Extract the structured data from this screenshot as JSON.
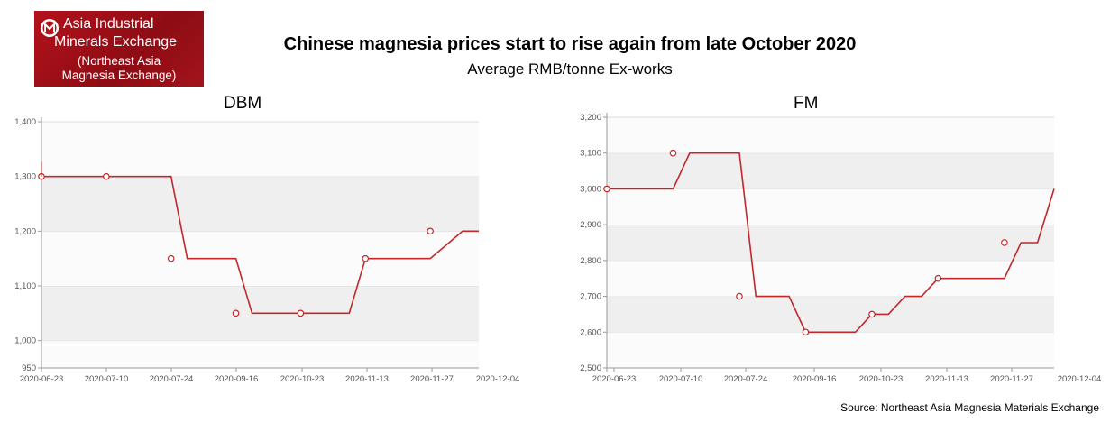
{
  "logo": {
    "line1": "Asia Industrial",
    "line2": "Minerals Exchange",
    "line3": "(Northeast Asia",
    "line4": "Magnesia Exchange)",
    "icon": "m-circle-logo-icon",
    "colors": {
      "background": "#a3141c",
      "text": "#ffffff"
    }
  },
  "header": {
    "title": "Chinese magnesia prices start to rise again from late October 2020",
    "subtitle": "Average RMB/tonne  Ex-works"
  },
  "source": "Source: Northeast Asia Magnesia Materials Exchange",
  "colors": {
    "line": "#c0282a",
    "band": "#efefef",
    "axis": "#999999"
  },
  "chart_data": [
    {
      "type": "line",
      "title": "DBM",
      "ylim": [
        950,
        1400
      ],
      "yticks": [
        950,
        1000,
        1100,
        1200,
        1300,
        1400
      ],
      "ytick_labels": [
        "950",
        "1,000",
        "1,100",
        "1,200",
        "1,300",
        "1,400"
      ],
      "xtick_labels": [
        "2020-06-23",
        "2020-07-10",
        "2020-07-24",
        "2020-09-16",
        "2020-10-23",
        "2020-11-13",
        "2020-11-27",
        "2020-12-04"
      ],
      "grid": "alternating-bands",
      "x": [
        0,
        1,
        2,
        3,
        3.5,
        4,
        4.5,
        5,
        5.5,
        6,
        6.5,
        7,
        7.5,
        8,
        8.5,
        9,
        9.5,
        10,
        10.5,
        11,
        11.5,
        12,
        13
      ],
      "series": [
        {
          "values": [
            1300,
            1300,
            1300,
            1300,
            1300,
            1300,
            1150,
            1150,
            1150,
            1150,
            1050,
            1050,
            1050,
            1050,
            1050,
            1050,
            1050,
            1150,
            1150,
            1150,
            1150,
            1150,
            1200
          ],
          "markers_x": [
            0,
            2,
            4,
            6,
            8,
            10,
            12
          ],
          "markers_y": [
            1300,
            1300,
            1150,
            1050,
            1050,
            1150,
            1200
          ],
          "end": [
            13.5,
            1200
          ]
        }
      ]
    },
    {
      "type": "line",
      "title": "FM",
      "ylim": [
        2500,
        3200
      ],
      "yticks": [
        2500,
        2600,
        2700,
        2800,
        2900,
        3000,
        3100,
        3200
      ],
      "ytick_labels": [
        "2,500",
        "2,600",
        "2,700",
        "2,800",
        "2,900",
        "3,000",
        "3,100",
        "3,200"
      ],
      "xtick_labels": [
        "2020-06-23",
        "2020-07-10",
        "2020-07-24",
        "2020-09-16",
        "2020-10-23",
        "2020-11-13",
        "2020-11-27",
        "2020-12-04"
      ],
      "grid": "alternating-bands",
      "x": [
        0,
        1,
        1.5,
        2,
        2.5,
        3,
        3.5,
        4,
        4.5,
        5,
        5.5,
        6,
        6.5,
        7,
        7.5,
        8,
        8.5,
        9,
        9.5,
        10,
        10.5,
        11,
        11.5,
        12,
        12.5,
        13
      ],
      "series": [
        {
          "values": [
            3000,
            3000,
            3000,
            3000,
            3100,
            3100,
            3100,
            3100,
            2700,
            2700,
            2700,
            2600,
            2600,
            2600,
            2600,
            2650,
            2650,
            2700,
            2700,
            2750,
            2750,
            2750,
            2750,
            2750,
            2850,
            2850
          ],
          "markers_x": [
            0,
            2,
            4,
            6,
            8,
            10,
            12
          ],
          "markers_y": [
            3000,
            3100,
            2700,
            2600,
            2650,
            2750,
            2850
          ],
          "end": [
            13.5,
            3000
          ]
        }
      ]
    }
  ]
}
